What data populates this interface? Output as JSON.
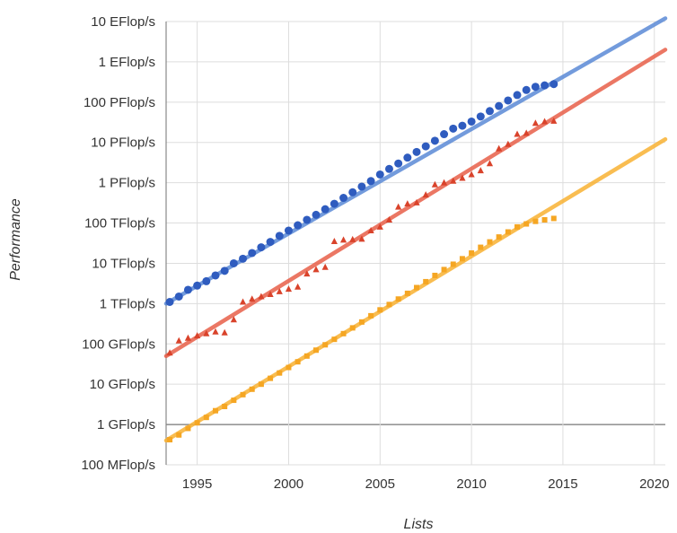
{
  "chart_data": {
    "type": "scatter",
    "xlabel": "Lists",
    "ylabel": "Performance",
    "y_scale": "log",
    "xlim": [
      1993.3,
      2020.6
    ],
    "ylim": [
      100000000.0,
      1e+19
    ],
    "x_ticks": [
      1995,
      2000,
      2005,
      2010,
      2015,
      2020
    ],
    "x_tick_labels": [
      "1995",
      "2000",
      "2005",
      "2010",
      "2015",
      "2020"
    ],
    "y_ticks": [
      100000000.0,
      1000000000.0,
      10000000000.0,
      100000000000.0,
      1000000000000.0,
      10000000000000.0,
      100000000000000.0,
      1000000000000000.0,
      1e+16,
      1e+17,
      1e+18,
      1e+19
    ],
    "y_tick_labels": [
      "100 MFlop/s",
      "1 GFlop/s",
      "10 GFlop/s",
      "100 GFlop/s",
      "1 TFlop/s",
      "10 TFlop/s",
      "100 TFlop/s",
      "1 PFlop/s",
      "10 PFlop/s",
      "100 PFlop/s",
      "1 EFlop/s",
      "10 EFlop/s"
    ],
    "grid": true,
    "legend": "none",
    "trend_lines": [
      {
        "color": "#5b8ad6",
        "points": [
          [
            1993.3,
            1000000000000.0
          ],
          [
            2020.6,
            1.2e+19
          ]
        ]
      },
      {
        "color": "#e8604a",
        "points": [
          [
            1993.3,
            50000000000.0
          ],
          [
            2020.6,
            2e+18
          ]
        ]
      },
      {
        "color": "#f9b233",
        "points": [
          [
            1993.3,
            400000000.0
          ],
          [
            2020.6,
            1.2e+16
          ]
        ]
      }
    ],
    "series": [
      {
        "color": "#2f5cbf",
        "marker": "circle",
        "x": [
          1993.5,
          1994,
          1994.5,
          1995,
          1995.5,
          1996,
          1996.5,
          1997,
          1997.5,
          1998,
          1998.5,
          1999,
          1999.5,
          2000,
          2000.5,
          2001,
          2001.5,
          2002,
          2002.5,
          2003,
          2003.5,
          2004,
          2004.5,
          2005,
          2005.5,
          2006,
          2006.5,
          2007,
          2007.5,
          2008,
          2008.5,
          2009,
          2009.5,
          2010,
          2010.5,
          2011,
          2011.5,
          2012,
          2012.5,
          2013,
          2013.5,
          2014,
          2014.5
        ],
        "y": [
          1100000000000.0,
          1500000000000.0,
          2200000000000.0,
          2800000000000.0,
          3600000000000.0,
          5000000000000.0,
          6500000000000.0,
          10000000000000.0,
          13000000000000.0,
          18000000000000.0,
          25000000000000.0,
          34000000000000.0,
          48000000000000.0,
          65000000000000.0,
          88000000000000.0,
          120000000000000.0,
          160000000000000.0,
          220000000000000.0,
          300000000000000.0,
          420000000000000.0,
          580000000000000.0,
          800000000000000.0,
          1100000000000000.0,
          1600000000000000.0,
          2200000000000000.0,
          3000000000000000.0,
          4200000000000000.0,
          5800000000000000.0,
          8000000000000000.0,
          1.1e+16,
          1.6e+16,
          2.2e+16,
          2.6e+16,
          3.3e+16,
          4.4e+16,
          6e+16,
          8e+16,
          1.1e+17,
          1.5e+17,
          2e+17,
          2.4e+17,
          2.6e+17,
          2.8e+17
        ]
      },
      {
        "color": "#d9432b",
        "marker": "triangle",
        "x": [
          1993.5,
          1994,
          1994.5,
          1995,
          1995.5,
          1996,
          1996.5,
          1997,
          1997.5,
          1998,
          1998.5,
          1999,
          1999.5,
          2000,
          2000.5,
          2001,
          2001.5,
          2002,
          2002.5,
          2003,
          2003.5,
          2004,
          2004.5,
          2005,
          2005.5,
          2006,
          2006.5,
          2007,
          2007.5,
          2008,
          2008.5,
          2009,
          2009.5,
          2010,
          2010.5,
          2011,
          2011.5,
          2012,
          2012.5,
          2013,
          2013.5,
          2014,
          2014.5
        ],
        "y": [
          60000000000.0,
          120000000000.0,
          140000000000.0,
          160000000000.0,
          180000000000.0,
          200000000000.0,
          190000000000.0,
          400000000000.0,
          1100000000000.0,
          1300000000000.0,
          1500000000000.0,
          1700000000000.0,
          2000000000000.0,
          2300000000000.0,
          2600000000000.0,
          5500000000000.0,
          7000000000000.0,
          8000000000000.0,
          35000000000000.0,
          38000000000000.0,
          39000000000000.0,
          40000000000000.0,
          65000000000000.0,
          80000000000000.0,
          120000000000000.0,
          250000000000000.0,
          300000000000000.0,
          320000000000000.0,
          500000000000000.0,
          900000000000000.0,
          1000000000000000.0,
          1100000000000000.0,
          1300000000000000.0,
          1600000000000000.0,
          2000000000000000.0,
          3000000000000000.0,
          7000000000000000.0,
          9000000000000000.0,
          1.6e+16,
          1.7e+16,
          3e+16,
          3.3e+16,
          3.4e+16
        ]
      },
      {
        "color": "#f5a623",
        "marker": "square",
        "x": [
          1993.5,
          1994,
          1994.5,
          1995,
          1995.5,
          1996,
          1996.5,
          1997,
          1997.5,
          1998,
          1998.5,
          1999,
          1999.5,
          2000,
          2000.5,
          2001,
          2001.5,
          2002,
          2002.5,
          2003,
          2003.5,
          2004,
          2004.5,
          2005,
          2005.5,
          2006,
          2006.5,
          2007,
          2007.5,
          2008,
          2008.5,
          2009,
          2009.5,
          2010,
          2010.5,
          2011,
          2011.5,
          2012,
          2012.5,
          2013,
          2013.5,
          2014,
          2014.5
        ],
        "y": [
          420000000.0,
          550000000.0,
          800000000.0,
          1100000000.0,
          1500000000.0,
          2200000000.0,
          2800000000.0,
          4000000000.0,
          5500000000.0,
          7500000000.0,
          10000000000.0,
          14000000000.0,
          19000000000.0,
          26000000000.0,
          36000000000.0,
          50000000000.0,
          70000000000.0,
          95000000000.0,
          130000000000.0,
          180000000000.0,
          250000000000.0,
          350000000000.0,
          500000000000.0,
          700000000000.0,
          950000000000.0,
          1300000000000.0,
          1800000000000.0,
          2500000000000.0,
          3500000000000.0,
          5000000000000.0,
          7000000000000.0,
          9500000000000.0,
          13000000000000.0,
          18000000000000.0,
          25000000000000.0,
          34000000000000.0,
          45000000000000.0,
          60000000000000.0,
          80000000000000.0,
          95000000000000.0,
          110000000000000.0,
          120000000000000.0,
          130000000000000.0
        ]
      }
    ]
  }
}
